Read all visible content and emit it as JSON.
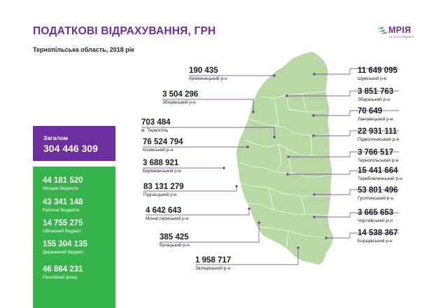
{
  "header": {
    "title": "ПОДАТКОВІ ВІДРАХУВАННЯ, ГРН",
    "subtitle": "Тернопільська область, 2018 рік"
  },
  "logo": {
    "name": "МРІЯ",
    "tagline": "АГРОХОЛДИНГ"
  },
  "total": {
    "label": "Загалом",
    "value": "304 446 309"
  },
  "budgets": [
    {
      "value": "44 181 520",
      "label": "Місцеві бюджети"
    },
    {
      "value": "43 341 148",
      "label": "Районні бюджети"
    },
    {
      "value": "14 755 275",
      "label": "Обласний бюджет"
    },
    {
      "value": "155 304 135",
      "label": "Державний бюджет"
    },
    {
      "value": "46 864 231",
      "label": "Пенсійний фонд"
    }
  ],
  "districts": [
    {
      "value": "190 435",
      "name": "Кременецький р-н"
    },
    {
      "value": "3 504 296",
      "name": "Зборівський р-н"
    },
    {
      "value": "703 484",
      "name": "м. Тернопіль"
    },
    {
      "value": "76 524 794",
      "name": "Козівський р-н"
    },
    {
      "value": "3 688 921",
      "name": "Бережанський р-н"
    },
    {
      "value": "83 131 279",
      "name": "Підгаєцький р-н"
    },
    {
      "value": "4 642 643",
      "name": "Монастириський р-н"
    },
    {
      "value": "385 425",
      "name": "Бучацький р-н"
    },
    {
      "value": "1 958 717",
      "name": "Заліщицький р-н"
    },
    {
      "value": "11 649 095",
      "name": "Шумський р-н"
    },
    {
      "value": "3 851 763",
      "name": "Збаразький р-н"
    },
    {
      "value": "70 649",
      "name": "Лановецький р-н"
    },
    {
      "value": "22 931 111",
      "name": "Підволочиський р-н"
    },
    {
      "value": "3 766 517",
      "name": "Тернопільський р-н"
    },
    {
      "value": "15 441 664",
      "name": "Теребовлянський р-н"
    },
    {
      "value": "53 801 496",
      "name": "Гусятинський р-н"
    },
    {
      "value": "3 665 653",
      "name": "Чортківський р-н"
    },
    {
      "value": "14 538 367",
      "name": "Борщівський р-н"
    }
  ],
  "colors": {
    "accent": "#6b2fa0",
    "green": "#36b34a",
    "map_fill": "#b9d9a4",
    "map_border": "#ffffff",
    "line": "#6b2fa0"
  }
}
